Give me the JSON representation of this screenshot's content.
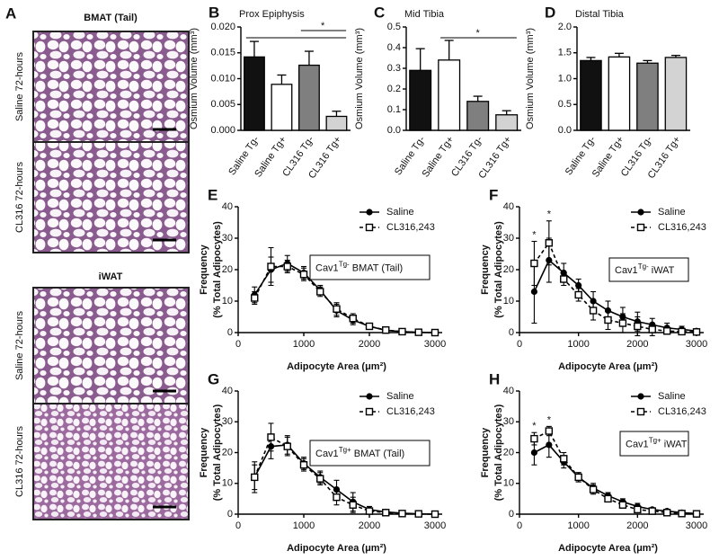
{
  "images": {
    "panel": "A",
    "groups": [
      {
        "title": "BMAT (Tail)",
        "images": [
          "Saline 72-hours",
          "CL316 72-hours"
        ]
      },
      {
        "title": "iWAT",
        "images": [
          "Saline 72-hours",
          "CL316 72-hours"
        ]
      }
    ]
  },
  "chart_data": [
    {
      "type": "bar",
      "panel": "B",
      "title": "Prox Epiphysis",
      "ylabel": "Osmium Volume (mm³)",
      "categories": [
        "Saline Tg-",
        "Saline Tg+",
        "CL316 Tg-",
        "CL316 Tg+"
      ],
      "values": [
        0.0142,
        0.0089,
        0.0126,
        0.0027
      ],
      "errors": [
        0.003,
        0.0018,
        0.0027,
        0.001
      ],
      "colors": [
        "#111111",
        "#ffffff",
        "#7f7f7f",
        "#d3d3d3"
      ],
      "ylim": [
        0,
        0.02
      ],
      "yticks": [
        {
          "value": 0,
          "label": "0.000"
        },
        0.005,
        {
          "value": 0.01,
          "label": "0.010"
        },
        0.015,
        {
          "value": 0.02,
          "label": "0.020"
        }
      ],
      "brackets": [
        {
          "from": 0,
          "to": 3
        },
        {
          "from": 2,
          "to": 3,
          "label": "*"
        }
      ]
    },
    {
      "type": "bar",
      "panel": "C",
      "title": "Mid Tibia",
      "ylabel": "Osmium Volume (mm³)",
      "categories": [
        "Saline Tg-",
        "Saline Tg+",
        "CL316 Tg-",
        "CL316 Tg+"
      ],
      "values": [
        0.29,
        0.34,
        0.14,
        0.075
      ],
      "errors": [
        0.105,
        0.095,
        0.025,
        0.02
      ],
      "colors": [
        "#111111",
        "#ffffff",
        "#7f7f7f",
        "#d3d3d3"
      ],
      "ylim": [
        0,
        0.5
      ],
      "yticks": [
        {
          "value": 0,
          "label": "0.0"
        },
        0.1,
        0.2,
        0.3,
        0.4,
        0.5
      ],
      "brackets": [
        {
          "from": 1,
          "to": 3,
          "label": "*"
        }
      ]
    },
    {
      "type": "bar",
      "panel": "D",
      "title": "Distal Tibia",
      "ylabel": "Osmium Volume (mm³)",
      "categories": [
        "Saline Tg-",
        "Saline Tg+",
        "CL316 Tg-",
        "CL316 Tg+"
      ],
      "values": [
        1.35,
        1.42,
        1.3,
        1.41
      ],
      "errors": [
        0.06,
        0.07,
        0.05,
        0.04
      ],
      "colors": [
        "#111111",
        "#ffffff",
        "#7f7f7f",
        "#d3d3d3"
      ],
      "ylim": [
        0,
        2
      ],
      "yticks": [
        {
          "value": 0,
          "label": "0.0"
        },
        0.5,
        {
          "value": 1,
          "label": "1.0"
        },
        1.5,
        {
          "value": 2,
          "label": "2.0"
        }
      ]
    },
    {
      "type": "line",
      "panel": "E",
      "ylabel": [
        "Frequency",
        "(% Total Adipocytes)"
      ],
      "xlabel": "Adipocyte Area (μm²)",
      "annotation": {
        "base": "Cav1",
        "sup": "Tg-",
        "rest": " BMAT (Tail)"
      },
      "x": [
        250,
        500,
        750,
        1000,
        1250,
        1500,
        1750,
        2000,
        2250,
        2500,
        2750,
        3000
      ],
      "series": [
        {
          "name": "Saline",
          "color": "#000000",
          "marker": "circle",
          "style": "solid",
          "values": [
            12,
            20,
            22,
            19,
            13.5,
            7,
            4,
            2,
            0.7,
            0.3,
            0.1,
            0
          ],
          "errors": [
            2.5,
            4,
            2.5,
            2,
            1.5,
            2,
            1.5,
            0.8,
            0.4,
            0.3,
            0.2,
            0
          ]
        },
        {
          "name": "CL316,243",
          "color": "#000000",
          "marker": "square",
          "style": "dashed",
          "values": [
            11,
            21,
            21,
            18.5,
            13,
            7.5,
            4.5,
            2,
            0.8,
            0.3,
            0.1,
            0
          ],
          "errors": [
            2,
            6,
            2,
            2,
            1.5,
            2,
            1.5,
            0.8,
            0.4,
            0.3,
            0.2,
            0
          ]
        }
      ],
      "xlim": [
        0,
        3000
      ],
      "xticks": [
        0,
        1000,
        2000,
        3000
      ],
      "ylim": [
        0,
        40
      ],
      "yticks": [
        0,
        10,
        20,
        30,
        40
      ]
    },
    {
      "type": "line",
      "panel": "F",
      "ylabel": [
        "Frequency",
        "(% Total Adipocytes)"
      ],
      "xlabel": "Adipocyte Area (μm²)",
      "annotation": {
        "base": "Cav1",
        "sup": "Tg-",
        "rest": " iWAT"
      },
      "x": [
        250,
        500,
        750,
        1000,
        1250,
        1500,
        1750,
        2000,
        2250,
        2500,
        2750,
        3000
      ],
      "series": [
        {
          "name": "Saline",
          "color": "#000000",
          "marker": "circle",
          "style": "solid",
          "values": [
            13,
            23,
            19,
            15,
            10,
            7,
            5,
            3.5,
            2.5,
            1.5,
            1,
            0.5
          ],
          "errors": [
            10,
            7,
            3,
            2,
            3,
            3,
            3,
            3,
            2,
            1.5,
            1,
            0.5
          ]
        },
        {
          "name": "CL316,243",
          "color": "#000000",
          "marker": "square",
          "style": "dashed",
          "values": [
            22,
            28.5,
            17,
            12,
            7,
            4,
            3,
            2,
            1,
            0.5,
            0.3,
            0.2
          ],
          "errors": [
            7,
            7,
            2,
            2,
            3,
            3,
            3,
            3,
            2,
            1,
            0.5,
            0.3
          ]
        }
      ],
      "stars": [
        {
          "x": 250,
          "label": "*"
        },
        {
          "x": 500,
          "label": "*"
        }
      ],
      "xlim": [
        0,
        3000
      ],
      "xticks": [
        0,
        1000,
        2000,
        3000
      ],
      "ylim": [
        0,
        40
      ],
      "yticks": [
        0,
        10,
        20,
        30,
        40
      ]
    },
    {
      "type": "line",
      "panel": "G",
      "ylabel": [
        "Frequency",
        "(% Total Adipocytes)"
      ],
      "xlabel": "Adipocyte Area (μm²)",
      "annotation": {
        "base": "Cav1",
        "sup": "Tg+",
        "rest": " BMAT (Tail)"
      },
      "x": [
        250,
        500,
        750,
        1000,
        1250,
        1500,
        1750,
        2000,
        2250,
        2500,
        2750,
        3000
      ],
      "series": [
        {
          "name": "Saline",
          "color": "#000000",
          "marker": "circle",
          "style": "solid",
          "values": [
            12,
            22,
            22.5,
            16.5,
            12,
            8,
            4,
            1.5,
            0.7,
            0.3,
            0.1,
            0
          ],
          "errors": [
            5,
            4,
            3,
            2,
            2,
            3,
            3,
            1,
            0.5,
            0.3,
            0.2,
            0
          ]
        },
        {
          "name": "CL316,243",
          "color": "#000000",
          "marker": "square",
          "style": "dashed",
          "values": [
            12,
            25,
            22,
            16,
            11.5,
            5.5,
            3,
            1,
            0.5,
            0.2,
            0.1,
            0
          ],
          "errors": [
            4,
            4.5,
            3,
            2,
            2,
            2.5,
            2.5,
            1,
            0.5,
            0.3,
            0.2,
            0
          ]
        }
      ],
      "xlim": [
        0,
        3000
      ],
      "xticks": [
        0,
        1000,
        2000,
        3000
      ],
      "ylim": [
        0,
        40
      ],
      "yticks": [
        0,
        10,
        20,
        30,
        40
      ]
    },
    {
      "type": "line",
      "panel": "H",
      "ylabel": [
        "Frequency",
        "(% Total Adipocytes)"
      ],
      "xlabel": "Adipocyte Area (μm²)",
      "annotation": {
        "base": "Cav1",
        "sup": "Tg+",
        "rest": " iWAT"
      },
      "x": [
        250,
        500,
        750,
        1000,
        1250,
        1500,
        1750,
        2000,
        2250,
        2500,
        2750,
        3000
      ],
      "series": [
        {
          "name": "Saline",
          "color": "#000000",
          "marker": "circle",
          "style": "solid",
          "values": [
            20,
            22.5,
            17,
            12,
            8.5,
            6,
            4,
            2.5,
            1.5,
            1,
            0.5,
            0.2
          ],
          "errors": [
            4,
            4,
            2,
            1.5,
            1.5,
            1,
            1,
            1,
            0.5,
            0.5,
            0.3,
            0.2
          ]
        },
        {
          "name": "CL316,243",
          "color": "#000000",
          "marker": "square",
          "style": "dashed",
          "values": [
            24.5,
            27,
            18,
            12,
            8,
            5,
            3,
            1.5,
            1,
            0.5,
            0.2,
            0.1
          ],
          "errors": [
            2,
            1.5,
            2,
            1.5,
            1.5,
            1,
            1,
            1,
            0.5,
            0.5,
            0.3,
            0.2
          ]
        }
      ],
      "stars": [
        {
          "x": 250,
          "label": "*"
        },
        {
          "x": 500,
          "label": "*"
        }
      ],
      "xlim": [
        0,
        3000
      ],
      "xticks": [
        0,
        1000,
        2000,
        3000
      ],
      "ylim": [
        0,
        40
      ],
      "yticks": [
        0,
        10,
        20,
        30,
        40
      ]
    }
  ]
}
